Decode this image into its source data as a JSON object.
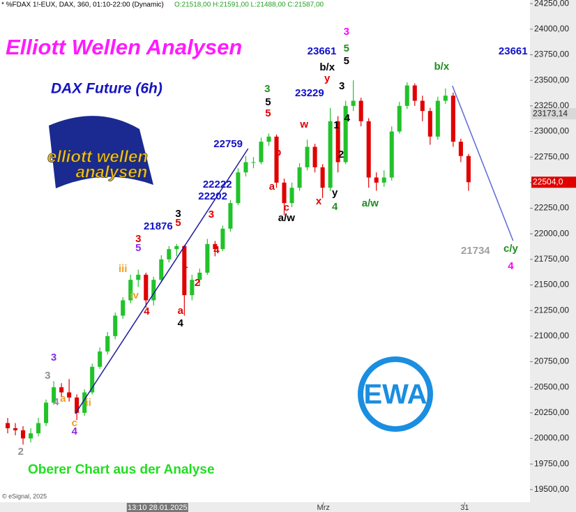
{
  "chart_data": {
    "type": "candlestick",
    "header": "* %FDAX 1!-EUX, DAX, 360, 01:10-22:00 (Dynamic)",
    "quote": "O:21518,00 H:21591,00 L:21488,00 C:21587,00",
    "title": "Elliott Wellen Analysen",
    "subtitle": "DAX Future (6h)",
    "footer": "Oberer Chart aus der Analyse",
    "copyright": "© eSignal, 2025",
    "logo": {
      "line1": "elliott wellen",
      "line2": "analysen"
    },
    "badge": "EWA",
    "up_color": "#22c22a",
    "down_color": "#e00000",
    "xlim": [
      0,
      69
    ],
    "ylim": [
      19390,
      24285
    ],
    "grid": false,
    "xticks": [
      {
        "value": 20.5,
        "label": "13:10 28.01.2025"
      },
      {
        "value": 42.1,
        "label": "Mrz"
      },
      {
        "value": 60.5,
        "label": "31"
      }
    ],
    "yticks": [
      {
        "value": 19500,
        "label": "19500,00"
      },
      {
        "value": 19750,
        "label": "19750,00"
      },
      {
        "value": 20000,
        "label": "20000,00"
      },
      {
        "value": 20250,
        "label": "20250,00"
      },
      {
        "value": 20500,
        "label": "20500,00"
      },
      {
        "value": 20750,
        "label": "20750,00"
      },
      {
        "value": 21000,
        "label": "21000,00"
      },
      {
        "value": 21250,
        "label": "21250,00"
      },
      {
        "value": 21500,
        "label": "21500,00"
      },
      {
        "value": 21750,
        "label": "21750,00"
      },
      {
        "value": 22000,
        "label": "22000,00"
      },
      {
        "value": 22250,
        "label": "22250,00"
      },
      {
        "value": 22500,
        "label": "22500,00"
      },
      {
        "value": 22750,
        "label": "22750,00"
      },
      {
        "value": 23000,
        "label": "23000,00"
      },
      {
        "value": 23250,
        "label": "23250,00"
      },
      {
        "value": 23500,
        "label": "23500,00"
      },
      {
        "value": 23750,
        "label": "23750,00"
      },
      {
        "value": 24000,
        "label": "24000,00"
      },
      {
        "value": 24250,
        "label": "24250,00"
      }
    ],
    "x": [
      1,
      2,
      3,
      4,
      5,
      6,
      7,
      8,
      9,
      10,
      11,
      12,
      13,
      14,
      15,
      16,
      17,
      18,
      19,
      20,
      21,
      22,
      23,
      24,
      25,
      26,
      27,
      28,
      29,
      30,
      31,
      32,
      33,
      34,
      35,
      36,
      37,
      38,
      39,
      40,
      41,
      42,
      43,
      44,
      45,
      46,
      47,
      48,
      49,
      50,
      51,
      52,
      53,
      54,
      55,
      56,
      57,
      58,
      59,
      60,
      61
    ],
    "open": [
      20150,
      20100,
      20080,
      20000,
      20050,
      20150,
      20350,
      20500,
      20450,
      20400,
      20250,
      20450,
      20700,
      20850,
      21000,
      21200,
      21350,
      21550,
      21600,
      21350,
      21550,
      21750,
      21850,
      21880,
      21400,
      21550,
      21620,
      21900,
      21850,
      22050,
      22300,
      22600,
      22700,
      22700,
      22900,
      22950,
      22500,
      22300,
      22450,
      22650,
      22850,
      22650,
      22450,
      23100,
      22700,
      23250,
      23300,
      23100,
      22550,
      22500,
      22550,
      23000,
      23250,
      23450,
      23300,
      23200,
      22950,
      23300,
      23350,
      22900,
      22760
    ],
    "high": [
      20200,
      20150,
      20120,
      20100,
      20200,
      20380,
      20560,
      20540,
      20580,
      20430,
      20480,
      20730,
      20890,
      21040,
      21230,
      21380,
      21600,
      21650,
      21620,
      21580,
      21790,
      21880,
      21900,
      21890,
      21600,
      21660,
      21950,
      21930,
      22080,
      22330,
      22640,
      22760,
      22750,
      22940,
      22980,
      22970,
      22540,
      22500,
      22690,
      22920,
      22880,
      22680,
      23230,
      23150,
      23300,
      23500,
      23330,
      23130,
      22600,
      22620,
      23050,
      23290,
      23480,
      23470,
      23350,
      23230,
      23340,
      23420,
      23380,
      22930,
      22780
    ],
    "low": [
      20050,
      20030,
      19940,
      19960,
      20020,
      20120,
      20330,
      20400,
      20360,
      20180,
      20220,
      20430,
      20680,
      20820,
      20970,
      21170,
      21320,
      21480,
      21280,
      21300,
      21520,
      21720,
      21780,
      21200,
      21350,
      21500,
      21600,
      21780,
      21830,
      22020,
      22280,
      22560,
      22640,
      22680,
      22860,
      22450,
      22180,
      22260,
      22420,
      22620,
      22600,
      22350,
      22420,
      22600,
      22680,
      23200,
      23050,
      22450,
      22420,
      22460,
      22520,
      22980,
      23220,
      23250,
      23100,
      22870,
      22920,
      23270,
      22850,
      22700,
      22420
    ],
    "close": [
      20100,
      20080,
      20000,
      20050,
      20150,
      20350,
      20500,
      20450,
      20400,
      20250,
      20450,
      20700,
      20850,
      21000,
      21200,
      21350,
      21550,
      21600,
      21350,
      21550,
      21750,
      21850,
      21880,
      21400,
      21550,
      21620,
      21900,
      21850,
      22050,
      22300,
      22600,
      22700,
      22700,
      22900,
      22950,
      22500,
      22300,
      22450,
      22650,
      22850,
      22650,
      22450,
      23100,
      22700,
      23250,
      23300,
      23100,
      22550,
      22500,
      22550,
      23000,
      23250,
      23450,
      23300,
      23200,
      22950,
      23300,
      23350,
      22900,
      22760,
      22504
    ],
    "price_markers": [
      {
        "value": 23173.14,
        "label": "23173,14",
        "color": "#d8d8d8"
      },
      {
        "value": 22504,
        "label": "22504,0",
        "color": "#e00000"
      }
    ],
    "trend_lines": [
      {
        "x": [
          9.8,
          32.3
        ],
        "y": [
          20242,
          22832
        ],
        "color": "#1a1aa0"
      },
      {
        "x": [
          58.9,
          66.8
        ],
        "y": [
          23446,
          21932
        ],
        "color": "#5a6ad8"
      }
    ],
    "annotations": [
      {
        "text": "3",
        "x": 45.1,
        "y": 23970,
        "color": "#ff00ff"
      },
      {
        "text": "5",
        "x": 45.1,
        "y": 23807,
        "color": "#1f8f1f"
      },
      {
        "text": "5",
        "x": 45.1,
        "y": 23684,
        "color": "#000000"
      },
      {
        "text": "23661",
        "x": 41.9,
        "y": 23780,
        "color": "#1010c8"
      },
      {
        "text": "b/x",
        "x": 42.6,
        "y": 23623,
        "color": "#000000"
      },
      {
        "text": "y",
        "x": 42.6,
        "y": 23514,
        "color": "#e00000"
      },
      {
        "text": "23229",
        "x": 40.3,
        "y": 23370,
        "color": "#1010c8"
      },
      {
        "text": "3",
        "x": 44.5,
        "y": 23439,
        "color": "#000000"
      },
      {
        "text": "4",
        "x": 45.2,
        "y": 23125,
        "color": "#000000"
      },
      {
        "text": "1",
        "x": 43.8,
        "y": 23057,
        "color": "#000000"
      },
      {
        "text": "2",
        "x": 44.4,
        "y": 22770,
        "color": "#000000"
      },
      {
        "text": "y",
        "x": 43.6,
        "y": 22396,
        "color": "#000000"
      },
      {
        "text": "4",
        "x": 43.6,
        "y": 22260,
        "color": "#1f8f1f"
      },
      {
        "text": "a/w",
        "x": 48.2,
        "y": 22293,
        "color": "#1f8f1f"
      },
      {
        "text": "x",
        "x": 41.5,
        "y": 22314,
        "color": "#e00000"
      },
      {
        "text": "w",
        "x": 39.6,
        "y": 23064,
        "color": "#e00000"
      },
      {
        "text": "3",
        "x": 34.8,
        "y": 23411,
        "color": "#1f8f1f"
      },
      {
        "text": "5",
        "x": 34.9,
        "y": 23282,
        "color": "#000000"
      },
      {
        "text": "5",
        "x": 34.9,
        "y": 23173,
        "color": "#e00000"
      },
      {
        "text": "b",
        "x": 36.2,
        "y": 22791,
        "color": "#e00000"
      },
      {
        "text": "a",
        "x": 35.4,
        "y": 22457,
        "color": "#e00000"
      },
      {
        "text": "c",
        "x": 37.3,
        "y": 22253,
        "color": "#e00000"
      },
      {
        "text": "a/w",
        "x": 37.3,
        "y": 22150,
        "color": "#000000"
      },
      {
        "text": "22759",
        "x": 29.7,
        "y": 22873,
        "color": "#1010c8"
      },
      {
        "text": "22222",
        "x": 28.3,
        "y": 22477,
        "color": "#1010c8"
      },
      {
        "text": "22202",
        "x": 27.7,
        "y": 22362,
        "color": "#1010c8"
      },
      {
        "text": "b/x",
        "x": 57.5,
        "y": 23630,
        "color": "#1f8f1f"
      },
      {
        "text": "c/y",
        "x": 66.5,
        "y": 21850,
        "color": "#1f8f1f"
      },
      {
        "text": "4",
        "x": 66.5,
        "y": 21680,
        "color": "#ff00ff"
      },
      {
        "text": "21734",
        "x": 61.9,
        "y": 21830,
        "color": "#a0a0a0"
      },
      {
        "text": "23661",
        "x": 66.8,
        "y": 23780,
        "color": "#1010c8"
      },
      {
        "text": "21876",
        "x": 20.6,
        "y": 22069,
        "color": "#1010c8"
      },
      {
        "text": "3",
        "x": 23.2,
        "y": 22191,
        "color": "#000000"
      },
      {
        "text": "5",
        "x": 23.2,
        "y": 22103,
        "color": "#e00000"
      },
      {
        "text": "3",
        "x": 27.5,
        "y": 22184,
        "color": "#e00000"
      },
      {
        "text": "4",
        "x": 28.2,
        "y": 21837,
        "color": "#e00000"
      },
      {
        "text": "1",
        "x": 24.1,
        "y": 21694,
        "color": "#e00000"
      },
      {
        "text": "2",
        "x": 25.7,
        "y": 21516,
        "color": "#e00000"
      },
      {
        "text": "a",
        "x": 23.5,
        "y": 21244,
        "color": "#e00000"
      },
      {
        "text": "4",
        "x": 23.5,
        "y": 21121,
        "color": "#000000"
      },
      {
        "text": "3",
        "x": 18.0,
        "y": 21946,
        "color": "#e00000"
      },
      {
        "text": "5",
        "x": 18.0,
        "y": 21857,
        "color": "#8a2be2"
      },
      {
        "text": "iii",
        "x": 16.0,
        "y": 21653,
        "color": "#f0a020"
      },
      {
        "text": "iv",
        "x": 17.5,
        "y": 21394,
        "color": "#f0a020"
      },
      {
        "text": "4",
        "x": 19.1,
        "y": 21237,
        "color": "#e00000"
      },
      {
        "text": "3",
        "x": 7.0,
        "y": 20787,
        "color": "#8a2be2"
      },
      {
        "text": "3",
        "x": 6.2,
        "y": 20610,
        "color": "#909090"
      },
      {
        "text": "4",
        "x": 7.3,
        "y": 20351,
        "color": "#909090"
      },
      {
        "text": "a",
        "x": 8.2,
        "y": 20385,
        "color": "#f0a020"
      },
      {
        "text": "ii",
        "x": 11.5,
        "y": 20344,
        "color": "#f0a020"
      },
      {
        "text": "c",
        "x": 9.7,
        "y": 20146,
        "color": "#f0a020"
      },
      {
        "text": "4",
        "x": 9.7,
        "y": 20064,
        "color": "#8a2be2"
      },
      {
        "text": "2",
        "x": 2.7,
        "y": 19867,
        "color": "#909090"
      }
    ]
  }
}
